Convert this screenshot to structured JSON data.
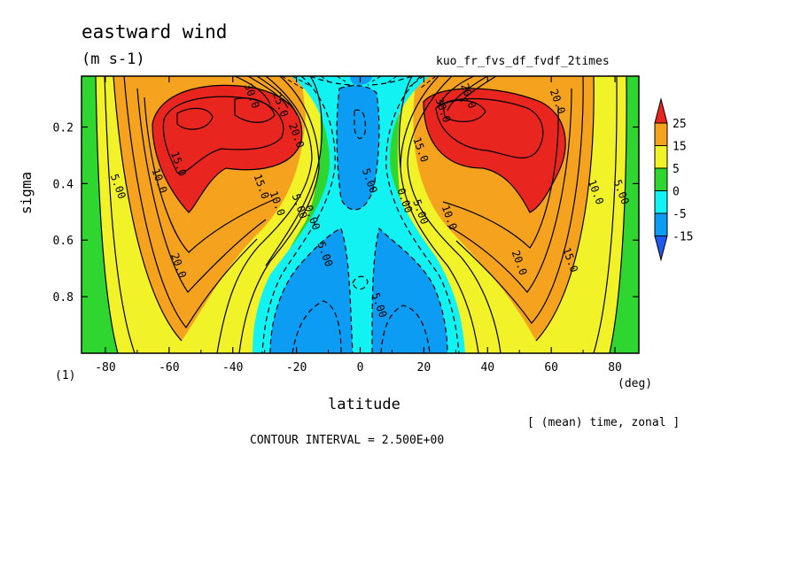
{
  "title": "eastward wind",
  "units": "(m s-1)",
  "experiment": "kuo_fr_fvs_df_fvdf_2times",
  "panel_label": "(1)",
  "x_unit": "(deg)",
  "note": "[ (mean) time, zonal ]",
  "contour_interval": "CONTOUR INTERVAL = 2.500E+00",
  "chart_data": {
    "type": "heatmap",
    "title": "eastward wind",
    "xlabel": "latitude",
    "ylabel": "sigma",
    "x_unit": "(deg)",
    "units": "(m s-1)",
    "xlim": [
      -87.5,
      87.5
    ],
    "ylim": [
      1.0,
      0.02
    ],
    "x_ticks": [
      -80,
      -60,
      -40,
      -20,
      0,
      20,
      40,
      60,
      80
    ],
    "y_ticks": [
      0.2,
      0.4,
      0.6,
      0.8
    ],
    "contour_interval": 2.5,
    "colorbar": {
      "levels": [
        25,
        15,
        5,
        0,
        -5,
        -15
      ],
      "colors": [
        "#e8261f",
        "#f5a21e",
        "#f2f229",
        "#2fd62f",
        "#12f2f2",
        "#0c9cf4",
        "#1e5af0"
      ]
    },
    "contour_labels": [
      {
        "text": "30.0",
        "lat": -34,
        "sigma": 0.09
      },
      {
        "text": "25.0",
        "lat": -25,
        "sigma": 0.12
      },
      {
        "text": "20.0",
        "lat": -20,
        "sigma": 0.23
      },
      {
        "text": "15.0",
        "lat": -57,
        "sigma": 0.33
      },
      {
        "text": "10.0",
        "lat": -63,
        "sigma": 0.39
      },
      {
        "text": "5.00",
        "lat": -76,
        "sigma": 0.41
      },
      {
        "text": "15.0",
        "lat": -31,
        "sigma": 0.41
      },
      {
        "text": "10.0",
        "lat": -26,
        "sigma": 0.47
      },
      {
        "text": "5.00",
        "lat": -19,
        "sigma": 0.48
      },
      {
        "text": "0.00",
        "lat": -15,
        "sigma": 0.52
      },
      {
        "text": "20.0",
        "lat": -57,
        "sigma": 0.69
      },
      {
        "text": "5.00",
        "lat": 3,
        "sigma": 0.39
      },
      {
        "text": "5.00",
        "lat": -11,
        "sigma": 0.65
      },
      {
        "text": "5.00",
        "lat": 6,
        "sigma": 0.83
      },
      {
        "text": "20.0",
        "lat": 34,
        "sigma": 0.09
      },
      {
        "text": "30.0",
        "lat": 26,
        "sigma": 0.14
      },
      {
        "text": "20.0",
        "lat": 62,
        "sigma": 0.11
      },
      {
        "text": "15.0",
        "lat": 19,
        "sigma": 0.28
      },
      {
        "text": "0.00",
        "lat": 14,
        "sigma": 0.46
      },
      {
        "text": "5.00",
        "lat": 19,
        "sigma": 0.5
      },
      {
        "text": "10.0",
        "lat": 28,
        "sigma": 0.52
      },
      {
        "text": "20.0",
        "lat": 50,
        "sigma": 0.68
      },
      {
        "text": "15.0",
        "lat": 66,
        "sigma": 0.67
      },
      {
        "text": "10.0",
        "lat": 74,
        "sigma": 0.43
      },
      {
        "text": "5.00",
        "lat": 82,
        "sigma": 0.43
      }
    ]
  }
}
